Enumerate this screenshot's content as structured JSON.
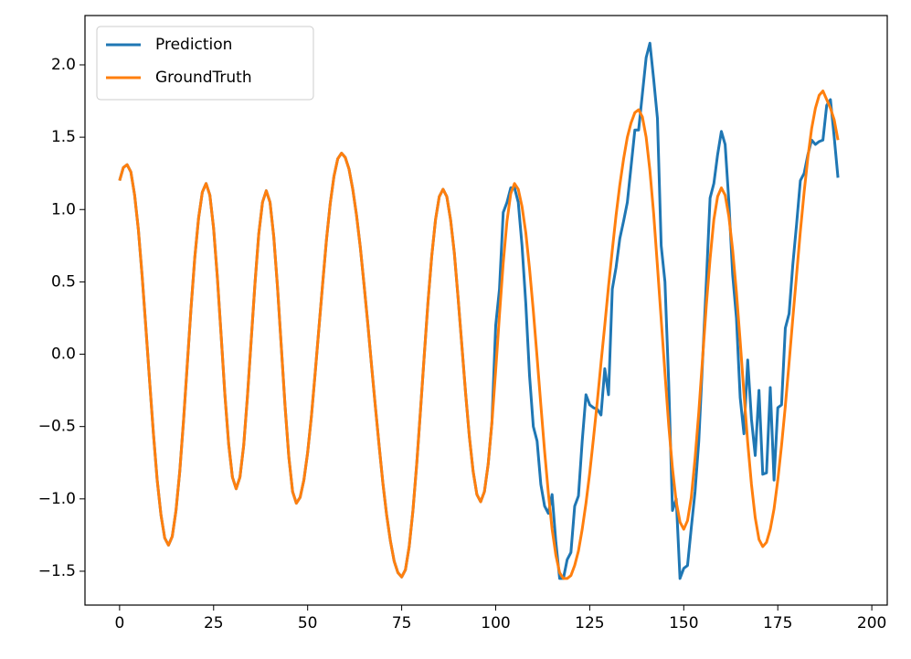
{
  "chart_data": {
    "type": "line",
    "x": [
      0,
      1,
      2,
      3,
      4,
      5,
      6,
      7,
      8,
      9,
      10,
      11,
      12,
      13,
      14,
      15,
      16,
      17,
      18,
      19,
      20,
      21,
      22,
      23,
      24,
      25,
      26,
      27,
      28,
      29,
      30,
      31,
      32,
      33,
      34,
      35,
      36,
      37,
      38,
      39,
      40,
      41,
      42,
      43,
      44,
      45,
      46,
      47,
      48,
      49,
      50,
      51,
      52,
      53,
      54,
      55,
      56,
      57,
      58,
      59,
      60,
      61,
      62,
      63,
      64,
      65,
      66,
      67,
      68,
      69,
      70,
      71,
      72,
      73,
      74,
      75,
      76,
      77,
      78,
      79,
      80,
      81,
      82,
      83,
      84,
      85,
      86,
      87,
      88,
      89,
      90,
      91,
      92,
      93,
      94,
      95,
      96,
      97,
      98,
      99,
      100,
      101,
      102,
      103,
      104,
      105,
      106,
      107,
      108,
      109,
      110,
      111,
      112,
      113,
      114,
      115,
      116,
      117,
      118,
      119,
      120,
      121,
      122,
      123,
      124,
      125,
      126,
      127,
      128,
      129,
      130,
      131,
      132,
      133,
      134,
      135,
      136,
      137,
      138,
      139,
      140,
      141,
      142,
      143,
      144,
      145,
      146,
      147,
      148,
      149,
      150,
      151,
      152,
      153,
      154,
      155,
      156,
      157,
      158,
      159,
      160,
      161,
      162,
      163,
      164,
      165,
      166,
      167,
      168,
      169,
      170,
      171,
      172,
      173,
      174,
      175,
      176,
      177,
      178,
      179,
      180,
      181,
      182,
      183,
      184,
      185,
      186,
      187,
      188,
      189,
      190,
      191
    ],
    "series": [
      {
        "name": "Prediction",
        "color": "#1f77b4",
        "values": [
          1.2,
          1.29,
          1.31,
          1.26,
          1.1,
          0.86,
          0.54,
          0.18,
          -0.19,
          -0.55,
          -0.87,
          -1.11,
          -1.27,
          -1.32,
          -1.26,
          -1.08,
          -0.81,
          -0.46,
          -0.07,
          0.32,
          0.67,
          0.94,
          1.12,
          1.18,
          1.1,
          0.87,
          0.53,
          0.13,
          -0.28,
          -0.62,
          -0.85,
          -0.93,
          -0.85,
          -0.63,
          -0.29,
          0.1,
          0.49,
          0.83,
          1.05,
          1.13,
          1.05,
          0.81,
          0.46,
          0.05,
          -0.36,
          -0.71,
          -0.95,
          -1.03,
          -0.99,
          -0.87,
          -0.68,
          -0.43,
          -0.13,
          0.18,
          0.49,
          0.79,
          1.04,
          1.23,
          1.35,
          1.39,
          1.36,
          1.28,
          1.14,
          0.96,
          0.74,
          0.48,
          0.21,
          -0.08,
          -0.36,
          -0.63,
          -0.89,
          -1.11,
          -1.29,
          -1.43,
          -1.51,
          -1.54,
          -1.49,
          -1.33,
          -1.08,
          -0.76,
          -0.39,
          -0.01,
          0.36,
          0.68,
          0.93,
          1.09,
          1.14,
          1.09,
          0.93,
          0.7,
          0.39,
          0.06,
          -0.27,
          -0.57,
          -0.81,
          -0.97,
          -1.02,
          -0.95,
          -0.76,
          -0.47,
          0.2,
          0.45,
          0.98,
          1.05,
          1.15,
          1.15,
          1.05,
          0.75,
          0.35,
          -0.15,
          -0.5,
          -0.6,
          -0.9,
          -1.05,
          -1.1,
          -0.97,
          -1.3,
          -1.55,
          -1.55,
          -1.42,
          -1.37,
          -1.05,
          -0.98,
          -0.6,
          -0.28,
          -0.35,
          -0.37,
          -0.38,
          -0.42,
          -0.1,
          -0.28,
          0.45,
          0.6,
          0.8,
          0.92,
          1.05,
          1.3,
          1.55,
          1.55,
          1.8,
          2.05,
          2.15,
          1.9,
          1.63,
          0.75,
          0.5,
          -0.2,
          -1.08,
          -1.0,
          -1.55,
          -1.48,
          -1.46,
          -1.2,
          -0.95,
          -0.6,
          -0.05,
          0.5,
          1.08,
          1.18,
          1.38,
          1.54,
          1.45,
          1.05,
          0.55,
          0.25,
          -0.3,
          -0.55,
          -0.04,
          -0.45,
          -0.7,
          -0.25,
          -0.83,
          -0.82,
          -0.23,
          -0.87,
          -0.37,
          -0.35,
          0.18,
          0.28,
          0.62,
          0.9,
          1.2,
          1.25,
          1.38,
          1.48,
          1.45,
          1.47,
          1.48,
          1.72,
          1.76,
          1.5,
          1.22
        ]
      },
      {
        "name": "GroundTruth",
        "color": "#ff7f0e",
        "values": [
          1.2,
          1.29,
          1.31,
          1.26,
          1.1,
          0.86,
          0.54,
          0.18,
          -0.19,
          -0.55,
          -0.87,
          -1.11,
          -1.27,
          -1.32,
          -1.26,
          -1.08,
          -0.81,
          -0.46,
          -0.07,
          0.32,
          0.67,
          0.94,
          1.12,
          1.18,
          1.1,
          0.87,
          0.53,
          0.13,
          -0.28,
          -0.62,
          -0.85,
          -0.93,
          -0.85,
          -0.63,
          -0.29,
          0.1,
          0.49,
          0.83,
          1.05,
          1.13,
          1.05,
          0.81,
          0.46,
          0.05,
          -0.36,
          -0.71,
          -0.95,
          -1.03,
          -0.99,
          -0.87,
          -0.68,
          -0.43,
          -0.13,
          0.18,
          0.49,
          0.79,
          1.04,
          1.23,
          1.35,
          1.39,
          1.36,
          1.28,
          1.14,
          0.96,
          0.74,
          0.48,
          0.21,
          -0.08,
          -0.36,
          -0.63,
          -0.89,
          -1.11,
          -1.29,
          -1.43,
          -1.51,
          -1.54,
          -1.49,
          -1.33,
          -1.08,
          -0.76,
          -0.39,
          -0.01,
          0.36,
          0.68,
          0.93,
          1.09,
          1.14,
          1.09,
          0.93,
          0.7,
          0.39,
          0.06,
          -0.27,
          -0.57,
          -0.81,
          -0.97,
          -1.02,
          -0.95,
          -0.76,
          -0.47,
          -0.11,
          0.27,
          0.63,
          0.92,
          1.11,
          1.18,
          1.14,
          1.02,
          0.84,
          0.59,
          0.3,
          -0.02,
          -0.35,
          -0.67,
          -0.96,
          -1.21,
          -1.39,
          -1.51,
          -1.55,
          -1.55,
          -1.53,
          -1.46,
          -1.36,
          -1.21,
          -1.03,
          -0.82,
          -0.58,
          -0.33,
          -0.06,
          0.2,
          0.47,
          0.72,
          0.96,
          1.17,
          1.35,
          1.5,
          1.6,
          1.67,
          1.69,
          1.64,
          1.5,
          1.27,
          0.97,
          0.61,
          0.24,
          -0.13,
          -0.49,
          -0.79,
          -1.02,
          -1.16,
          -1.21,
          -1.15,
          -0.99,
          -0.72,
          -0.4,
          -0.03,
          0.34,
          0.66,
          0.93,
          1.09,
          1.15,
          1.1,
          0.95,
          0.72,
          0.43,
          0.09,
          -0.27,
          -0.61,
          -0.9,
          -1.13,
          -1.28,
          -1.33,
          -1.3,
          -1.21,
          -1.07,
          -0.87,
          -0.63,
          -0.36,
          -0.06,
          0.25,
          0.55,
          0.85,
          1.12,
          1.36,
          1.56,
          1.7,
          1.79,
          1.82,
          1.76,
          1.7,
          1.62,
          1.48
        ]
      }
    ],
    "xlim": [
      -9.2,
      204.1
    ],
    "ylim": [
      -1.734,
      2.341
    ],
    "xticks": [
      0,
      25,
      50,
      75,
      100,
      125,
      150,
      175,
      200
    ],
    "yticks": [
      {
        "value": -1.5,
        "label": "−1.5"
      },
      {
        "value": -1.0,
        "label": "−1.0"
      },
      {
        "value": -0.5,
        "label": "−0.5"
      },
      {
        "value": 0.0,
        "label": "0.0"
      },
      {
        "value": 0.5,
        "label": "0.5"
      },
      {
        "value": 1.0,
        "label": "1.0"
      },
      {
        "value": 1.5,
        "label": "1.5"
      },
      {
        "value": 2.0,
        "label": "2.0"
      }
    ],
    "legend": "upper left",
    "grid": false
  }
}
